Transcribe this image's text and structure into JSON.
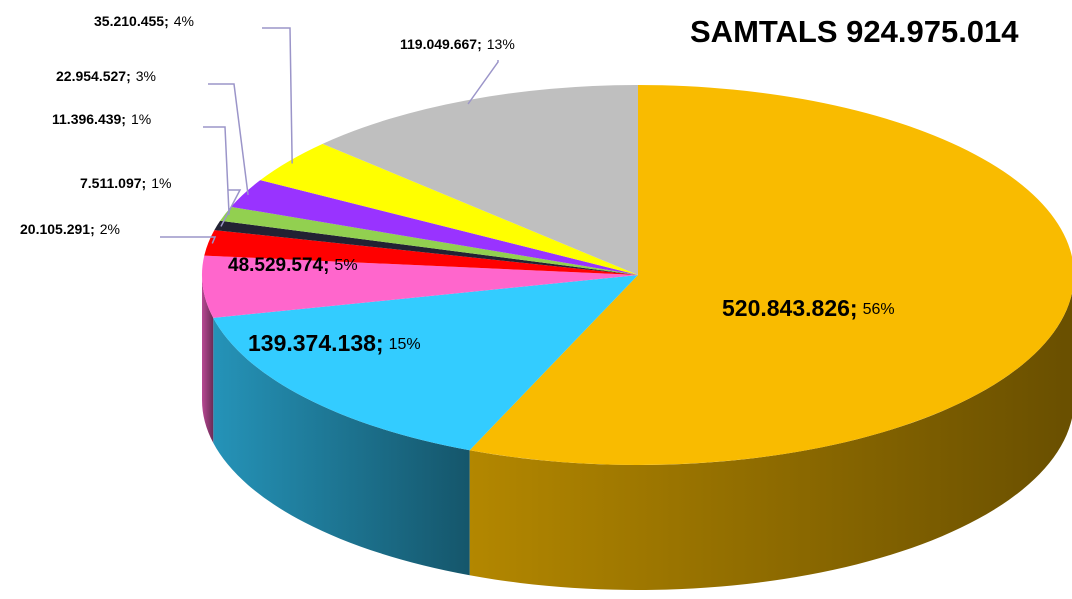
{
  "chart_data": {
    "type": "pie",
    "title": "SAMTALS 924.975.014",
    "categories": [
      null,
      null,
      null,
      null,
      null,
      null,
      null,
      null,
      null
    ],
    "values": [
      520843826,
      139374138,
      48529574,
      20105291,
      7511097,
      11396439,
      22954527,
      35210455,
      119049667
    ],
    "value_labels": [
      "520.843.826",
      "139.374.138",
      "48.529.574",
      "20.105.291",
      "7.511.097",
      "11.396.439",
      "22.954.527",
      "35.210.455",
      "119.049.667"
    ],
    "label_separator": ";",
    "percents": [
      56,
      15,
      5,
      2,
      1,
      1,
      3,
      4,
      13
    ],
    "percent_labels": [
      "56%",
      "15%",
      "5%",
      "2%",
      "1%",
      "1%",
      "3%",
      "4%",
      "13%"
    ],
    "colors": [
      "#f9bb00",
      "#33ccff",
      "#ff66cc",
      "#ff0000",
      "#222233",
      "#92d050",
      "#9933ff",
      "#ffff00",
      "#bfbfbf"
    ],
    "start_angle": 0,
    "direction": "clockwise",
    "three_d": true
  }
}
